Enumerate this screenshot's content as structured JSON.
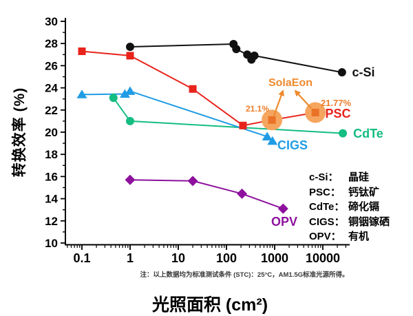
{
  "figure": {
    "x_axis_label": "光照面积 (cm²)",
    "y_axis_label": "转换效率 (%)",
    "footnote": "注：以上数据均为标准测试条件 (STC)：25°C，AM1.5G标准光源所得。"
  },
  "legend": {
    "items": [
      {
        "term": "c-Si：",
        "def": "晶硅"
      },
      {
        "term": "PSC：",
        "def": "钙钛矿"
      },
      {
        "term": "CdTe：",
        "def": "碲化镉"
      },
      {
        "term": "CIGS：",
        "def": "铜铟镓硒"
      },
      {
        "term": "OPV：",
        "def": "有机"
      }
    ]
  },
  "chart_data": {
    "type": "line",
    "x_scale": "log",
    "xlabel": "光照面积 (cm²)",
    "ylabel": "转换效率 (%)",
    "xlim": [
      0.045,
      36000
    ],
    "ylim": [
      10,
      30
    ],
    "x_ticks": [
      "0.1",
      "1",
      "10",
      "100",
      "1000",
      "10000"
    ],
    "y_ticks": [
      "30",
      "28",
      "26",
      "24",
      "22",
      "20",
      "18",
      "16",
      "14",
      "12",
      "10"
    ],
    "grid": false,
    "series": [
      {
        "name": "c-Si",
        "color": "#111111",
        "marker": "circle",
        "points": [
          [
            1,
            27.7
          ],
          [
            140,
            27.95
          ],
          [
            160,
            27.5
          ],
          [
            270,
            27.0
          ],
          [
            330,
            26.55
          ],
          [
            380,
            26.9
          ],
          [
            25000,
            25.4
          ]
        ]
      },
      {
        "name": "PSC",
        "color": "#e8231c",
        "marker": "square",
        "points": [
          [
            0.1,
            27.3
          ],
          [
            1,
            26.9
          ],
          [
            20,
            23.9
          ],
          [
            220,
            20.6
          ],
          [
            880,
            21.1
          ],
          [
            7000,
            21.77
          ]
        ],
        "highlight_indices": [
          4,
          5
        ]
      },
      {
        "name": "CdTe",
        "color": "#14bd81",
        "marker": "circle",
        "points": [
          [
            0.45,
            23.1
          ],
          [
            1,
            21.0
          ],
          [
            26000,
            19.9
          ]
        ]
      },
      {
        "name": "CIGS",
        "color": "#209ce4",
        "marker": "triangle",
        "points": [
          [
            0.1,
            23.4
          ],
          [
            0.78,
            23.45
          ],
          [
            1,
            23.7
          ],
          [
            700,
            19.6
          ],
          [
            900,
            19.2
          ]
        ]
      },
      {
        "name": "OPV",
        "color": "#8d119d",
        "marker": "diamond",
        "points": [
          [
            1,
            15.7
          ],
          [
            20,
            15.6
          ],
          [
            210,
            14.45
          ],
          [
            1500,
            13.1
          ]
        ]
      }
    ],
    "highlight": {
      "circle_fill": "#f6a55f",
      "marker_color": "#ea7226",
      "arrow_color": "#ee8a2e"
    },
    "annotations": [
      {
        "id": "solaeon",
        "text": "SolaEon",
        "color": "#ee8a2e"
      },
      {
        "id": "v1",
        "text": "21.1%",
        "color": "#ed7d2b"
      },
      {
        "id": "v2",
        "text": "21.77%",
        "color": "#ed7d2b"
      },
      {
        "id": "psc",
        "text": "PSC",
        "color": "#e8231c"
      },
      {
        "id": "csi",
        "text": "c-Si",
        "color": "#111111"
      },
      {
        "id": "cdte",
        "text": "CdTe",
        "color": "#14bd81"
      },
      {
        "id": "cigs",
        "text": "CIGS",
        "color": "#209ce4"
      },
      {
        "id": "opv",
        "text": "OPV",
        "color": "#8d119d"
      }
    ]
  }
}
